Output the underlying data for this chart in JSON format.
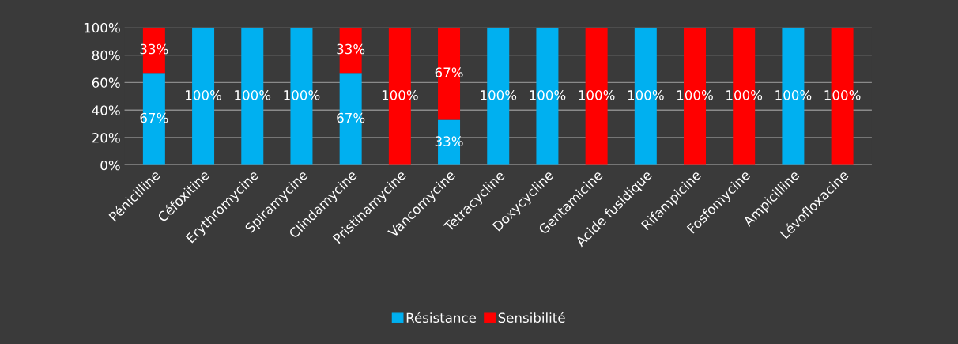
{
  "chart_data": {
    "type": "bar",
    "stacked": true,
    "categories": [
      "Pénicilline",
      "Céfoxitine",
      "Erythromycine",
      "Spiramycine",
      "Clindamycine",
      "Pristinamycine",
      "Vancomycine",
      "Tétracycline",
      "Doxycycline",
      "Gentamicine",
      "Acide fusidique",
      "Rifampicine",
      "Fosfomycine",
      "Ampicilline",
      "Lévofloxacine"
    ],
    "series": [
      {
        "name": "Résistance",
        "color": "#00b0f0",
        "values": [
          67,
          100,
          100,
          100,
          67,
          0,
          33,
          100,
          100,
          0,
          100,
          0,
          0,
          100,
          0
        ],
        "value_labels": [
          "67%",
          "100%",
          "100%",
          "100%",
          "67%",
          null,
          "33%",
          "100%",
          "100%",
          null,
          "100%",
          null,
          null,
          "100%",
          null
        ]
      },
      {
        "name": "Sensibilité",
        "color": "#ff0000",
        "values": [
          33,
          0,
          0,
          0,
          33,
          100,
          67,
          0,
          0,
          100,
          0,
          100,
          100,
          0,
          100
        ],
        "value_labels": [
          "33%",
          null,
          null,
          null,
          "33%",
          "100%",
          "67%",
          null,
          null,
          "100%",
          null,
          "100%",
          "100%",
          null,
          "100%"
        ]
      }
    ],
    "ylim": [
      0,
      100
    ],
    "yticks": [
      {
        "value": 0,
        "label": "0%"
      },
      {
        "value": 20,
        "label": "20%"
      },
      {
        "value": 40,
        "label": "40%"
      },
      {
        "value": 60,
        "label": "60%"
      },
      {
        "value": 80,
        "label": "80%"
      },
      {
        "value": 100,
        "label": "100%"
      }
    ],
    "grid": "y",
    "legend": "bottom"
  }
}
